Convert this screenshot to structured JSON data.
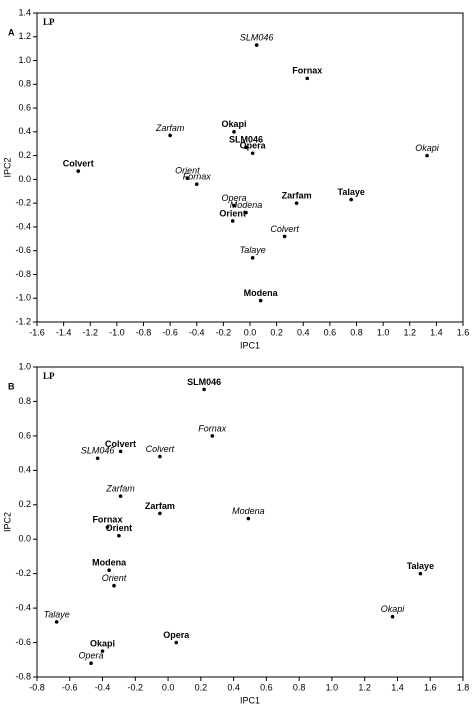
{
  "chart_data": [
    {
      "type": "scatter",
      "panel": "A",
      "annotation": "LP",
      "xlabel": "IPC1",
      "ylabel": "IPC2",
      "color": "#000000",
      "labels": [
        "SLM046",
        "Fornax",
        "Zarfam",
        "Okapi",
        "SLM046",
        "Opera",
        "Okapi",
        "Colvert",
        "Orient",
        "Fornax",
        "Opera",
        "Modena",
        "Orient",
        "Zarfam",
        "Talaye",
        "Colvert",
        "Talaye",
        "Modena"
      ],
      "label_styles": [
        "italic",
        "bold",
        "italic",
        "bold",
        "bold",
        "bold",
        "italic",
        "bold",
        "italic",
        "italic",
        "italic",
        "italic",
        "bold",
        "bold",
        "bold",
        "italic",
        "italic",
        "bold"
      ],
      "x": [
        0.05,
        0.43,
        -0.6,
        -0.12,
        -0.03,
        0.02,
        1.33,
        -1.29,
        -0.47,
        -0.4,
        -0.12,
        -0.03,
        -0.13,
        0.35,
        0.76,
        0.26,
        0.02,
        0.08
      ],
      "y": [
        1.13,
        0.85,
        0.37,
        0.4,
        0.27,
        0.22,
        0.2,
        0.07,
        0.01,
        -0.04,
        -0.22,
        -0.28,
        -0.35,
        -0.2,
        -0.17,
        -0.48,
        -0.66,
        -1.02
      ],
      "xlim": [
        -1.6,
        1.6
      ],
      "xticks": [
        -1.6,
        -1.4,
        -1.2,
        {
          "value": -1,
          "label": "-1.0"
        },
        -0.8,
        -0.6,
        -0.4,
        -0.2,
        {
          "value": 0,
          "label": "0.0"
        },
        0.2,
        0.4,
        0.6,
        0.8,
        {
          "value": 1,
          "label": "1.0"
        },
        1.2,
        1.4,
        1.6
      ],
      "ylim": [
        -1.2,
        1.4
      ],
      "yticks": [
        -1.2,
        {
          "value": -1,
          "label": "-1.0"
        },
        -0.8,
        -0.6,
        -0.4,
        -0.2,
        {
          "value": 0,
          "label": "0.0"
        },
        0.2,
        0.4,
        0.6,
        0.8,
        {
          "value": 1,
          "label": "1.0"
        },
        1.2,
        1.4
      ]
    },
    {
      "type": "scatter",
      "panel": "B",
      "annotation": "LP",
      "xlabel": "IPC1",
      "ylabel": "IPC2",
      "color": "#000000",
      "labels": [
        "SLM046",
        "Fornax",
        "Colvert",
        "SLM046",
        "Colvert",
        "Zarfam",
        "Zarfam",
        "Modena",
        "Fornax",
        "Orient",
        "Modena",
        "Orient",
        "Talaye",
        "Okapi",
        "Talaye",
        "Okapi",
        "Opera",
        "Opera"
      ],
      "label_styles": [
        "bold",
        "italic",
        "bold",
        "italic",
        "italic",
        "italic",
        "bold",
        "italic",
        "bold",
        "bold",
        "bold",
        "italic",
        "bold",
        "italic",
        "italic",
        "bold",
        "italic",
        "bold"
      ],
      "x": [
        0.22,
        0.27,
        -0.29,
        -0.43,
        -0.05,
        -0.29,
        -0.05,
        0.49,
        -0.37,
        -0.3,
        -0.36,
        -0.33,
        1.54,
        1.37,
        -0.68,
        -0.4,
        -0.47,
        0.05
      ],
      "y": [
        0.87,
        0.6,
        0.51,
        0.47,
        0.48,
        0.25,
        0.15,
        0.12,
        0.07,
        0.02,
        -0.18,
        -0.27,
        -0.2,
        -0.45,
        -0.48,
        -0.65,
        -0.72,
        -0.6
      ],
      "xlim": [
        -0.8,
        1.8
      ],
      "xticks": [
        -0.8,
        -0.6,
        -0.4,
        -0.2,
        {
          "value": 0,
          "label": "0.0"
        },
        0.2,
        0.4,
        0.6,
        0.8,
        {
          "value": 1,
          "label": "1.0"
        },
        1.2,
        1.4,
        1.6,
        1.8
      ],
      "ylim": [
        -0.8,
        1.0
      ],
      "yticks": [
        -0.8,
        -0.6,
        -0.4,
        -0.2,
        {
          "value": 0,
          "label": "0.0"
        },
        0.2,
        0.4,
        0.6,
        0.8,
        {
          "value": 1,
          "label": "1.0"
        }
      ]
    }
  ]
}
